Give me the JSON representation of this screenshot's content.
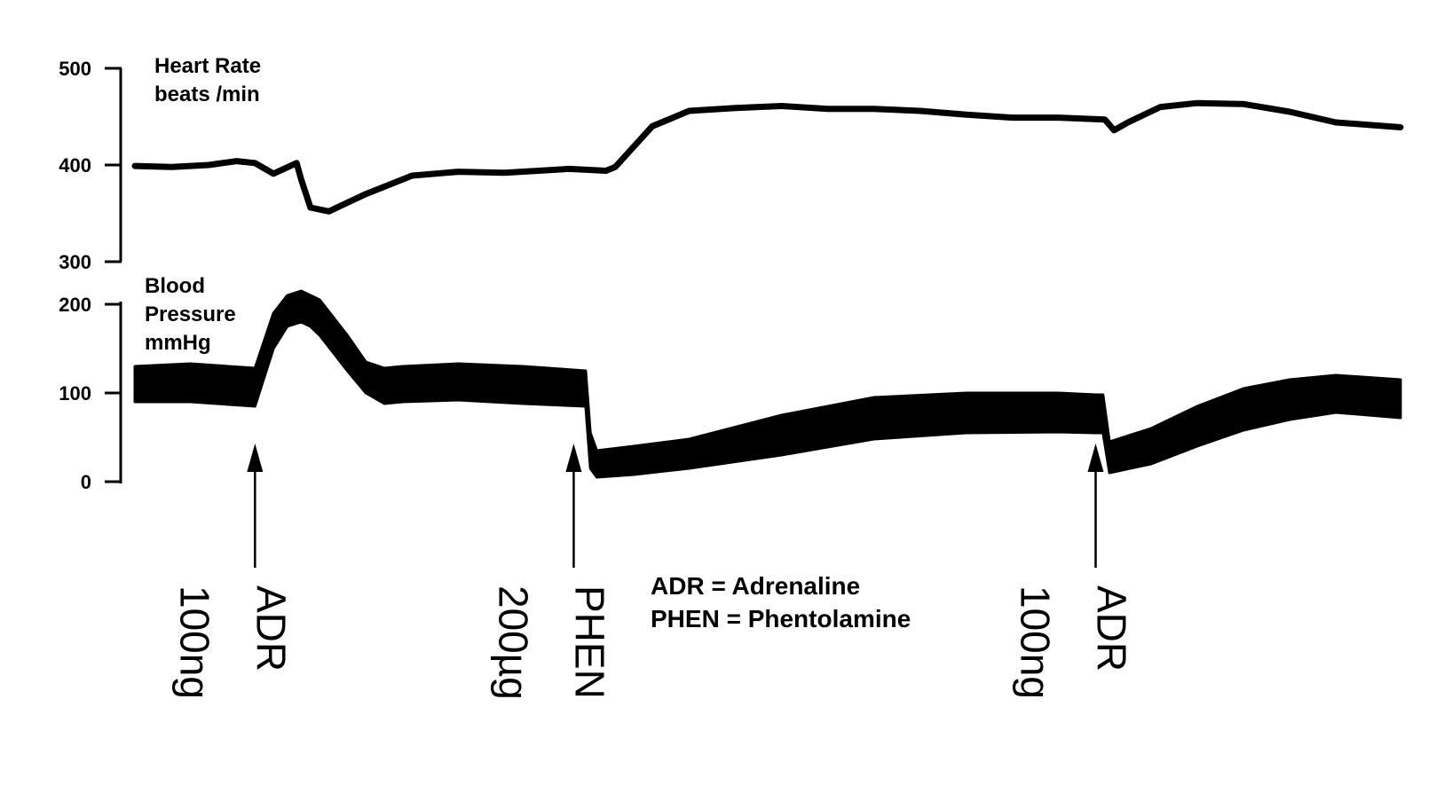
{
  "chart_data": [
    {
      "type": "line",
      "panel": "heart_rate",
      "ylabel_line1": "Heart Rate",
      "ylabel_line2": "beats /min",
      "ylim": [
        300,
        500
      ],
      "yticks": [
        "500",
        "400",
        "300"
      ],
      "grid": false,
      "x": [
        0,
        40,
        80,
        110,
        130,
        150,
        175,
        180,
        190,
        210,
        250,
        300,
        350,
        400,
        470,
        510,
        520,
        560,
        600,
        650,
        700,
        750,
        800,
        850,
        900,
        950,
        1000,
        1050,
        1060,
        1075,
        1110,
        1150,
        1200,
        1250,
        1300,
        1370
      ],
      "values": [
        399,
        398,
        400,
        404,
        402,
        391,
        402,
        385,
        356,
        352,
        370,
        389,
        393,
        392,
        396,
        394,
        398,
        440,
        456,
        459,
        461,
        458,
        458,
        456,
        452,
        449,
        449,
        447,
        436,
        444,
        460,
        464,
        463,
        455,
        444,
        439
      ]
    },
    {
      "type": "area",
      "panel": "blood_pressure",
      "ylabel_line1": "Blood",
      "ylabel_line2": "Pressure",
      "ylabel_line3": "mmHg",
      "ylim": [
        0,
        200
      ],
      "yticks": [
        "200",
        "100",
        "0"
      ],
      "grid": false,
      "x": [
        0,
        60,
        130,
        150,
        165,
        180,
        190,
        200,
        230,
        250,
        270,
        290,
        350,
        420,
        488,
        493,
        500,
        540,
        600,
        700,
        800,
        900,
        1000,
        1040,
        1048,
        1055,
        1100,
        1150,
        1200,
        1250,
        1300,
        1370
      ],
      "upper": [
        130,
        133,
        128,
        190,
        210,
        215,
        210,
        205,
        165,
        135,
        128,
        130,
        133,
        130,
        125,
        55,
        35,
        40,
        48,
        75,
        95,
        100,
        100,
        98,
        98,
        45,
        60,
        85,
        105,
        115,
        120,
        115
      ],
      "lower": [
        90,
        90,
        85,
        150,
        175,
        180,
        175,
        165,
        125,
        100,
        88,
        90,
        92,
        88,
        85,
        15,
        5,
        8,
        15,
        30,
        48,
        55,
        56,
        55,
        55,
        10,
        20,
        40,
        58,
        70,
        78,
        72
      ]
    }
  ],
  "annotations": [
    {
      "x": 130,
      "drug": "ADR",
      "dose": "100ng"
    },
    {
      "x": 475,
      "drug": "PHEN",
      "dose": "200µg"
    },
    {
      "x": 1040,
      "drug": "ADR",
      "dose": "100ng"
    }
  ],
  "legend": {
    "line1": "ADR = Adrenaline",
    "line2": "PHEN = Phentolamine"
  },
  "colors": {
    "trace": "#000000",
    "background": "#ffffff"
  }
}
